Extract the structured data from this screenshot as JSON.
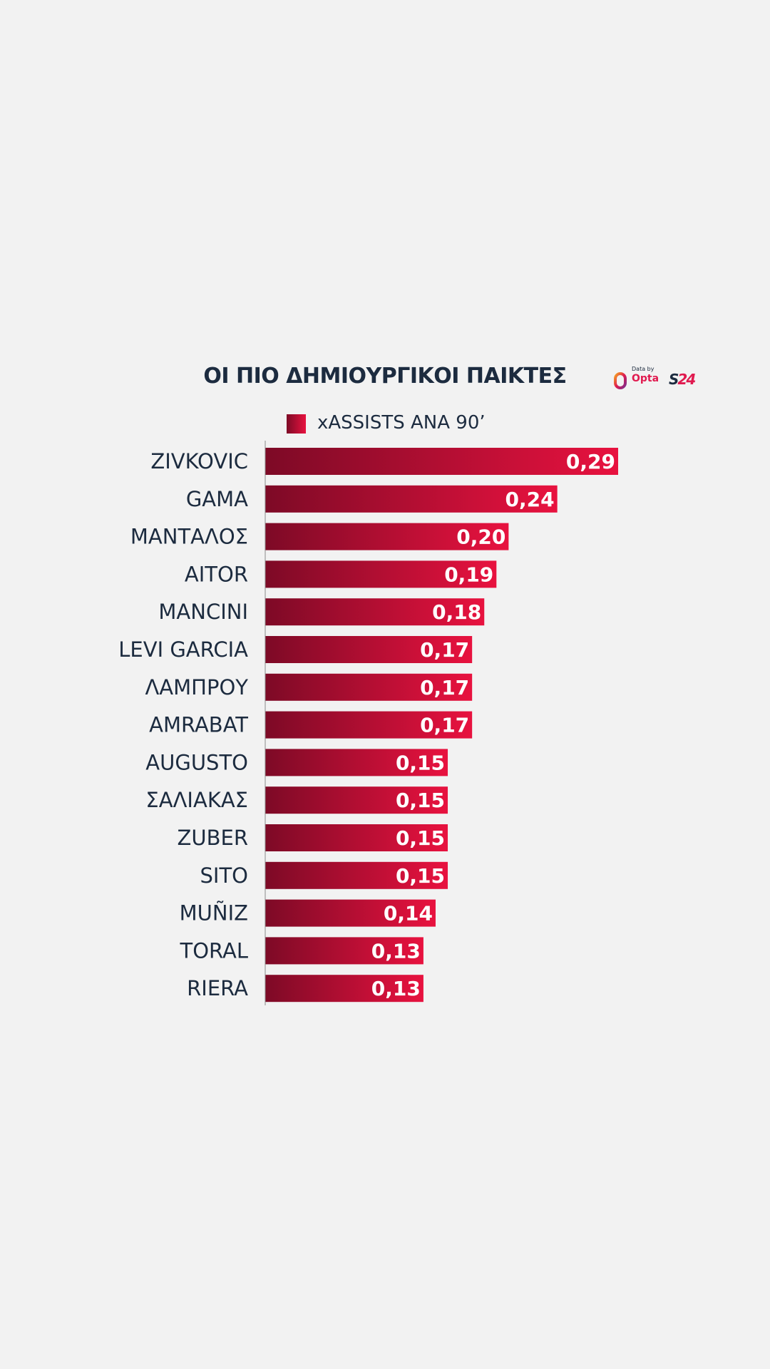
{
  "header": {
    "title": "ΟΙ ΠΙΟ ΔΗΜΙΟΥΡΓΙΚΟΙ ΠΑΙΚΤΕΣ"
  },
  "logos": {
    "data_by": "Data by",
    "opta": "Opta",
    "s24_s": "S",
    "s24_n": "24"
  },
  "colors": {
    "background": "#f2f2f2",
    "bar_start": "#7d0a26",
    "bar_end": "#e8123f",
    "text": "#1c2b3f"
  },
  "chart_data": {
    "type": "bar",
    "orientation": "horizontal",
    "title": "ΟΙ ΠΙΟ ΔΗΜΙΟΥΡΓΙΚΟΙ ΠΑΙΚΤΕΣ",
    "legend": [
      "xASSISTS ΑΝΑ 90’"
    ],
    "legend_position": "top",
    "categories": [
      "ZIVKOVIC",
      "GAMA",
      "ΜΑΝΤΑΛΟΣ",
      "AITOR",
      "MANCINI",
      "LEVI GARCIA",
      "ΛΑΜΠΡΟΥ",
      "AMRABAT",
      "AUGUSTO",
      "ΣΑΛΙΑΚΑΣ",
      "ZUBER",
      "SITO",
      "MUÑIZ",
      "TORAL",
      "RIERA"
    ],
    "values": [
      0.29,
      0.24,
      0.2,
      0.19,
      0.18,
      0.17,
      0.17,
      0.17,
      0.15,
      0.15,
      0.15,
      0.15,
      0.14,
      0.13,
      0.13
    ],
    "value_labels": [
      "0,29",
      "0,24",
      "0,20",
      "0,19",
      "0,18",
      "0,17",
      "0,17",
      "0,17",
      "0,15",
      "0,15",
      "0,15",
      "0,15",
      "0,14",
      "0,13",
      "0,13"
    ],
    "series": [
      {
        "name": "xASSISTS ΑΝΑ 90’"
      }
    ],
    "xlim": [
      0,
      0.29
    ],
    "grid": false
  }
}
